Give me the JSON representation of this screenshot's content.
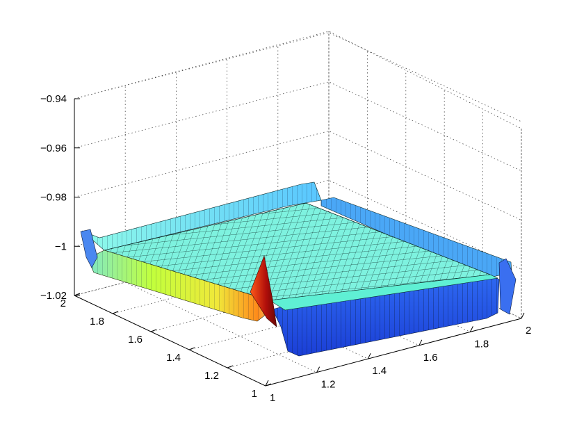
{
  "chart_data": {
    "type": "surface",
    "title": "",
    "xlabel": "",
    "ylabel": "",
    "zlabel": "",
    "xlim": [
      1,
      2
    ],
    "ylim": [
      1,
      2
    ],
    "zlim": [
      -1.02,
      -0.94
    ],
    "x_ticks": [
      "1",
      "1.2",
      "1.4",
      "1.6",
      "1.8",
      "2"
    ],
    "y_ticks": [
      "1",
      "1.2",
      "1.4",
      "1.6",
      "1.8",
      "2"
    ],
    "z_ticks": [
      "-0.94",
      "-0.96",
      "-0.98",
      "-1",
      "-1.02"
    ],
    "grid": "dotted",
    "colormap": "jet",
    "surface": {
      "plateau_value": -0.992,
      "rim_value": -0.987,
      "rim_edges": [
        "y=2",
        "x=1"
      ],
      "trough_edges": [
        "y=1",
        "x=2"
      ],
      "trough_min": -1.033,
      "spike": {
        "x": 1.0,
        "y": 1.0,
        "peak": -1.0
      },
      "samples": [
        {
          "x": 1.0,
          "y": 1.0,
          "z": -1.0
        },
        {
          "x": 1.5,
          "y": 1.5,
          "z": -0.992
        },
        {
          "x": 1.5,
          "y": 2.0,
          "z": -0.987
        },
        {
          "x": 1.0,
          "y": 1.5,
          "z": -0.995
        },
        {
          "x": 1.5,
          "y": 1.0,
          "z": -1.033
        },
        {
          "x": 2.0,
          "y": 1.5,
          "z": -1.03
        }
      ]
    },
    "colors": {
      "plateau": "#7ff0e0",
      "rim": "#66ccff",
      "trough": "#1f4fe0",
      "left_wall": "#c8ff40",
      "spike": "#cc1a10"
    }
  }
}
